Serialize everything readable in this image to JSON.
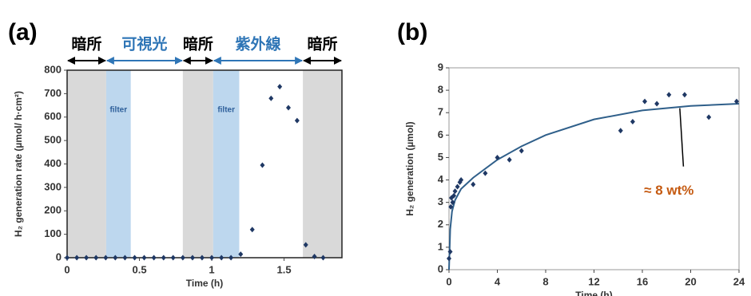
{
  "chart_data": [
    {
      "type": "scatter",
      "panel": "(a)",
      "xlabel": "Time (h)",
      "ylabel": "H₂ generation rate (µmol/ h·cm²)",
      "xlim": [
        0,
        1.9
      ],
      "ylim": [
        0,
        800
      ],
      "xticks": [
        0,
        0.5,
        1,
        1.5
      ],
      "yticks": [
        0,
        100,
        200,
        300,
        400,
        500,
        600,
        700,
        800
      ],
      "color": "#1f3864",
      "x": [
        0,
        0.067,
        0.133,
        0.2,
        0.267,
        0.333,
        0.4,
        0.467,
        0.533,
        0.6,
        0.667,
        0.733,
        0.8,
        0.867,
        0.933,
        1.0,
        1.067,
        1.133,
        1.2,
        1.28,
        1.35,
        1.41,
        1.47,
        1.53,
        1.59,
        1.65,
        1.71,
        1.77
      ],
      "values": [
        0,
        0,
        0,
        0,
        0,
        0,
        0,
        0,
        0,
        0,
        0,
        0,
        0,
        0,
        0,
        0,
        0,
        0,
        15,
        120,
        395,
        680,
        730,
        640,
        585,
        55,
        5,
        0
      ],
      "bands": [
        {
          "x": [
            0,
            0.27
          ],
          "color": "#d9d9d9"
        },
        {
          "x": [
            0.27,
            0.44
          ],
          "color": "#bdd7ee",
          "label": "filter"
        },
        {
          "x": [
            0.8,
            1.01
          ],
          "color": "#d9d9d9"
        },
        {
          "x": [
            1.01,
            1.19
          ],
          "color": "#bdd7ee",
          "label": "filter"
        },
        {
          "x": [
            1.63,
            1.9
          ],
          "color": "#d9d9d9"
        }
      ],
      "spans": [
        {
          "label": "暗所",
          "x": [
            0,
            0.27
          ],
          "color": "#000000"
        },
        {
          "label": "可視光",
          "x": [
            0.27,
            0.8
          ],
          "color": "#2e75b6"
        },
        {
          "label": "暗所",
          "x": [
            0.8,
            1.01
          ],
          "color": "#000000"
        },
        {
          "label": "紫外線",
          "x": [
            1.01,
            1.63
          ],
          "color": "#2e75b6"
        },
        {
          "label": "暗所",
          "x": [
            1.63,
            1.9
          ],
          "color": "#000000"
        }
      ]
    },
    {
      "type": "scatter",
      "panel": "(b)",
      "xlabel": "Time (h)",
      "ylabel": "H₂ generation (µmol)",
      "xlim": [
        0,
        24
      ],
      "ylim": [
        0,
        9
      ],
      "xticks": [
        0,
        4,
        8,
        12,
        16,
        20,
        24
      ],
      "yticks": [
        0,
        1,
        2,
        3,
        4,
        5,
        6,
        7,
        8,
        9
      ],
      "color": "#1f3864",
      "x": [
        0,
        0.1,
        0.15,
        0.2,
        0.3,
        0.4,
        0.5,
        0.7,
        0.9,
        1,
        2,
        3,
        4,
        5,
        6,
        14.2,
        15.2,
        16.2,
        17.2,
        18.2,
        19.5,
        21.5,
        23.8
      ],
      "values": [
        0.5,
        0.8,
        2.8,
        3.2,
        3.0,
        3.3,
        3.5,
        3.7,
        3.9,
        4.0,
        3.8,
        4.3,
        5.0,
        4.9,
        5.3,
        6.2,
        6.6,
        7.5,
        7.4,
        7.8,
        7.8,
        6.8,
        7.5
      ],
      "curve": {
        "color": "#2f5f8a",
        "x": [
          0,
          0.1,
          0.25,
          0.5,
          1,
          2,
          4,
          6,
          8,
          12,
          16,
          20,
          24
        ],
        "values": [
          0,
          1.8,
          2.6,
          3.1,
          3.6,
          4.1,
          4.9,
          5.5,
          6.0,
          6.7,
          7.1,
          7.3,
          7.4
        ]
      },
      "annotation": {
        "text": "≈ 8 wt%",
        "x": 18.2,
        "y": 3.5,
        "line": [
          [
            19.1,
            7.2
          ],
          [
            19.4,
            4.6
          ]
        ]
      }
    }
  ]
}
